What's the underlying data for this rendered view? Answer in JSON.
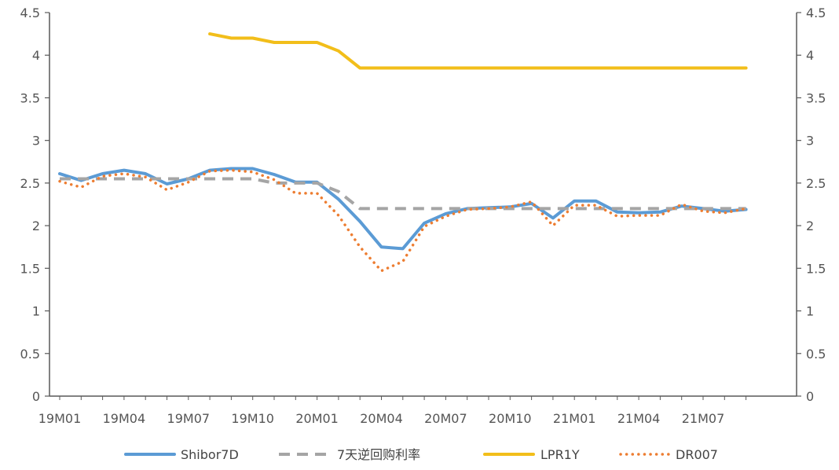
{
  "chart_data": {
    "type": "line",
    "title": "",
    "xlabel": "",
    "ylabel": "",
    "ylim": [
      0,
      4.5
    ],
    "y2lim": [
      0,
      4.5
    ],
    "yticks": [
      "0",
      "0.5",
      "1",
      "1.5",
      "2",
      "2.5",
      "3",
      "3.5",
      "4",
      "4.5"
    ],
    "xtick_labels": [
      "19M01",
      "19M04",
      "19M07",
      "19M10",
      "20M01",
      "20M04",
      "20M07",
      "20M10",
      "21M01",
      "21M04",
      "21M07"
    ],
    "categories": [
      "19M01",
      "19M02",
      "19M03",
      "19M04",
      "19M05",
      "19M06",
      "19M07",
      "19M08",
      "19M09",
      "19M10",
      "19M11",
      "19M12",
      "20M01",
      "20M02",
      "20M03",
      "20M04",
      "20M05",
      "20M06",
      "20M07",
      "20M08",
      "20M09",
      "20M10",
      "20M11",
      "20M12",
      "21M01",
      "21M02",
      "21M03",
      "21M04",
      "21M05",
      "21M06",
      "21M07",
      "21M08",
      "21M09"
    ],
    "grid": false,
    "legend_position": "bottom",
    "series": [
      {
        "name": "Shibor7D",
        "color": "#5B9BD5",
        "style": "solid",
        "values": [
          2.61,
          2.53,
          2.61,
          2.65,
          2.61,
          2.49,
          2.55,
          2.65,
          2.67,
          2.67,
          2.6,
          2.51,
          2.51,
          2.31,
          2.05,
          1.75,
          1.73,
          2.03,
          2.14,
          2.2,
          2.21,
          2.22,
          2.26,
          2.09,
          2.29,
          2.29,
          2.16,
          2.15,
          2.16,
          2.23,
          2.2,
          2.17,
          2.19
        ]
      },
      {
        "name": "7天逆回购利率",
        "color": "#A5A5A5",
        "style": "dashed",
        "values": [
          2.55,
          2.55,
          2.55,
          2.55,
          2.55,
          2.55,
          2.55,
          2.55,
          2.55,
          2.55,
          2.5,
          2.5,
          2.5,
          2.4,
          2.2,
          2.2,
          2.2,
          2.2,
          2.2,
          2.2,
          2.2,
          2.2,
          2.2,
          2.2,
          2.2,
          2.2,
          2.2,
          2.2,
          2.2,
          2.2,
          2.2,
          2.2,
          2.2
        ]
      },
      {
        "name": "LPR1Y",
        "color": "#F2BE1A",
        "style": "solid",
        "values": [
          null,
          null,
          null,
          null,
          null,
          null,
          null,
          4.25,
          4.2,
          4.2,
          4.15,
          4.15,
          4.15,
          4.05,
          3.85,
          3.85,
          3.85,
          3.85,
          3.85,
          3.85,
          3.85,
          3.85,
          3.85,
          3.85,
          3.85,
          3.85,
          3.85,
          3.85,
          3.85,
          3.85,
          3.85,
          3.85,
          3.85
        ]
      },
      {
        "name": "DR007",
        "color": "#ED7D31",
        "style": "dotted",
        "values": [
          2.52,
          2.45,
          2.58,
          2.61,
          2.57,
          2.42,
          2.51,
          2.64,
          2.65,
          2.63,
          2.54,
          2.38,
          2.38,
          2.12,
          1.75,
          1.47,
          1.58,
          1.99,
          2.11,
          2.19,
          2.2,
          2.22,
          2.28,
          2.0,
          2.24,
          2.24,
          2.11,
          2.12,
          2.12,
          2.25,
          2.17,
          2.15,
          2.2
        ]
      }
    ]
  }
}
